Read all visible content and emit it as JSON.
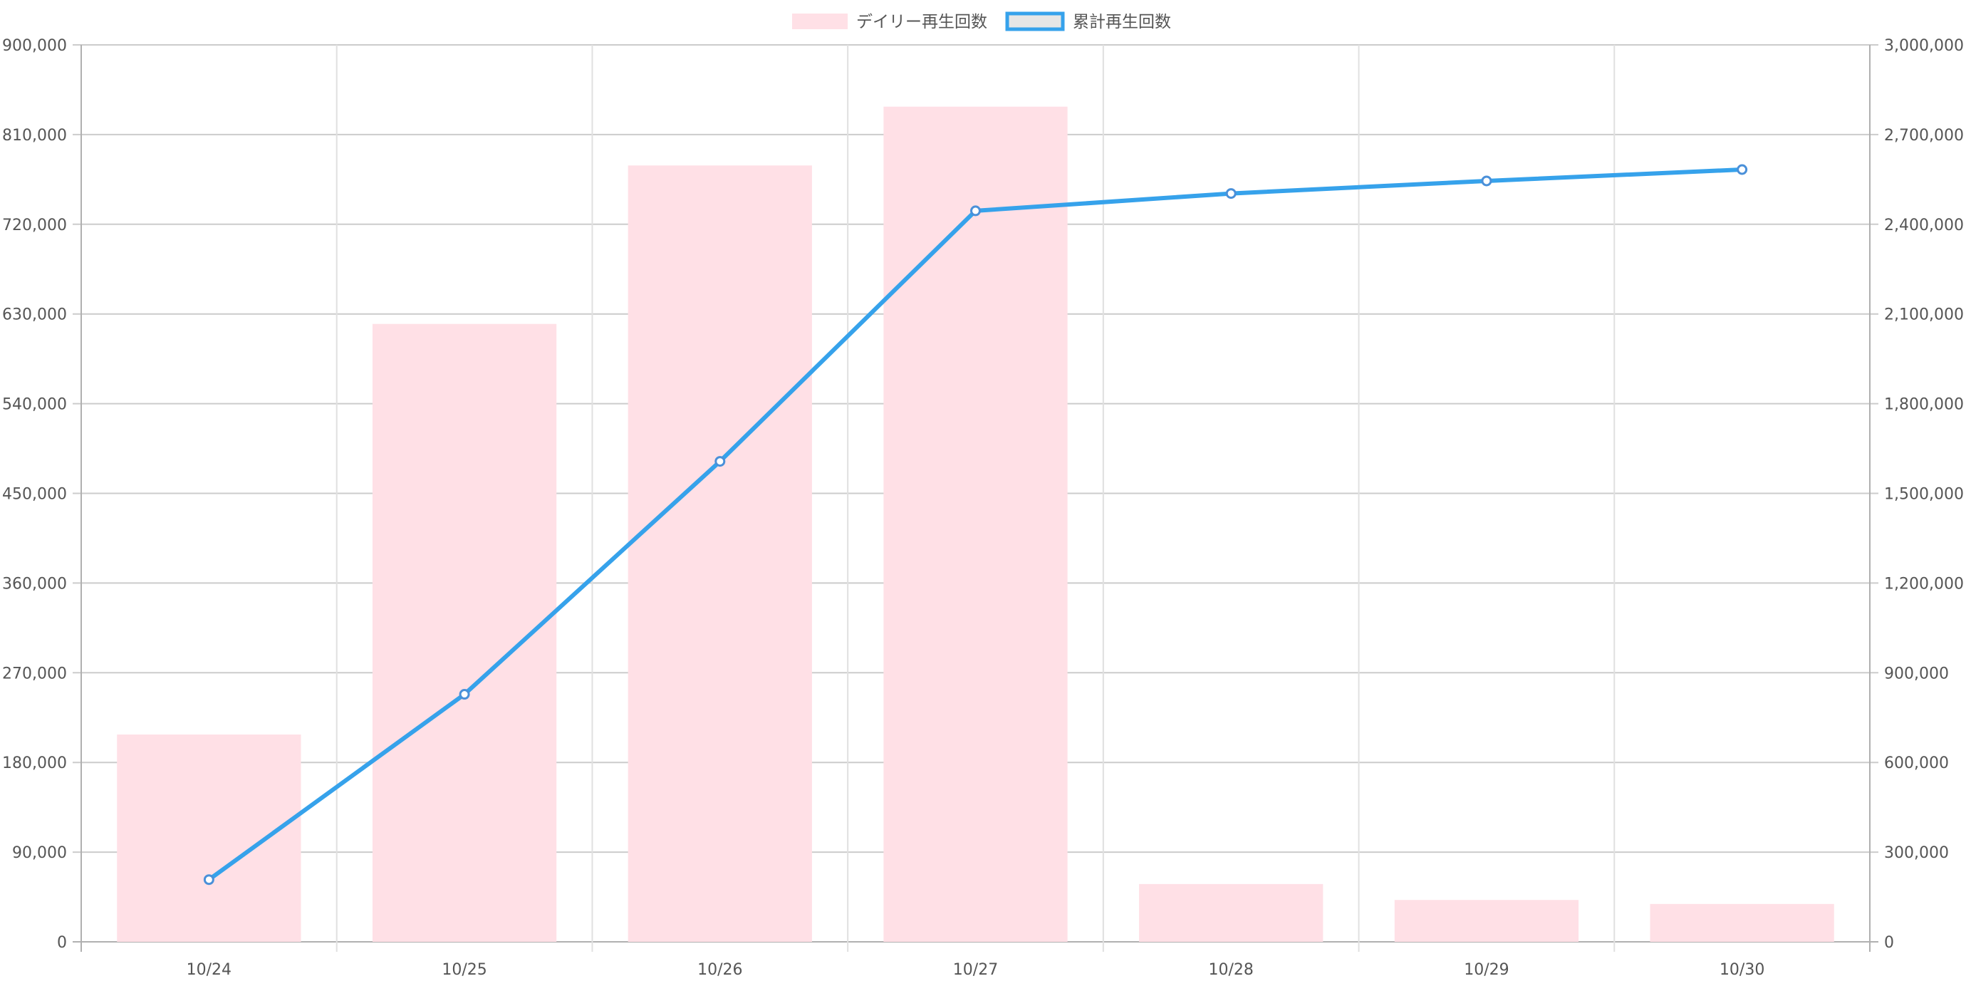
{
  "chart_data": {
    "type": "bar",
    "categories": [
      "10/24",
      "10/25",
      "10/26",
      "10/27",
      "10/28",
      "10/29",
      "10/30"
    ],
    "series": [
      {
        "name": "デイリー再生回数",
        "type": "bar",
        "axis": "left",
        "color": "#ffe0e6",
        "values": [
          208000,
          620000,
          779000,
          838000,
          58000,
          42000,
          38000
        ]
      },
      {
        "name": "累計再生回数",
        "type": "line",
        "axis": "right",
        "color": "#36a2eb",
        "values": [
          208000,
          828000,
          1607000,
          2445000,
          2503000,
          2545000,
          2583000
        ]
      }
    ],
    "y_left": {
      "range": [
        0,
        900000
      ],
      "ticks": [
        "900,000",
        "810,000",
        "720,000",
        "630,000",
        "540,000",
        "450,000",
        "360,000",
        "270,000",
        "180,000",
        "90,000",
        "0"
      ]
    },
    "y_right": {
      "range": [
        0,
        3000000
      ],
      "ticks": [
        "3,000,000",
        "2,700,000",
        "2,400,000",
        "2,100,000",
        "1,800,000",
        "1,500,000",
        "1,200,000",
        "900,000",
        "600,000",
        "300,000",
        "0"
      ]
    },
    "legend": "top-center",
    "grid": true
  }
}
